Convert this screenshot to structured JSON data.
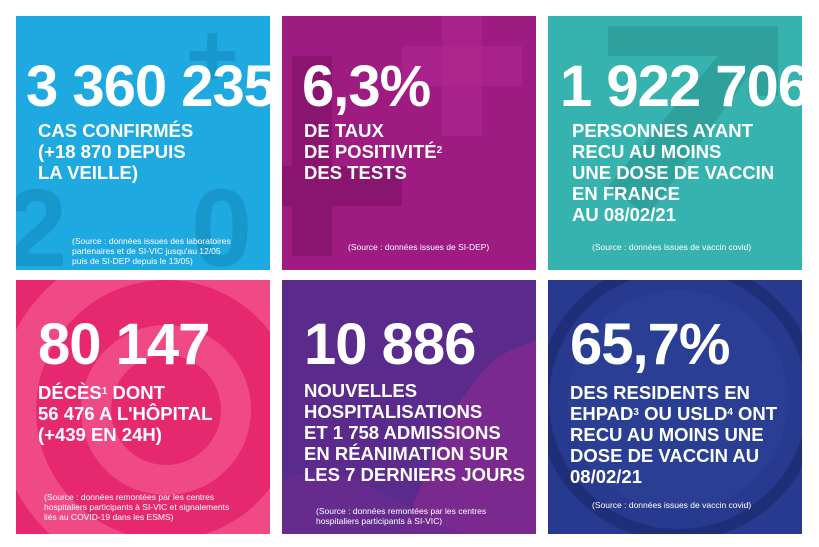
{
  "colors": {
    "tile_cases": "#1fa9e1",
    "tile_positivity": "#9e1b82",
    "tile_vaccine": "#36b3ae",
    "tile_deaths": "#e6296f",
    "tile_hospital": "#5a2a8c",
    "tile_ehpad": "#273a8f"
  },
  "tiles": {
    "cases": {
      "value": "3 360 235",
      "lines": [
        "CAS CONFIRMÉS",
        "(+18 870 DEPUIS",
        "LA VEILLE)"
      ],
      "source": [
        "(Source : données issues des laboratoires",
        "partenaires et de SI-VIC jusqu'au 12/05",
        "puis de SI-DEP depuis le 13/05)"
      ]
    },
    "positivity": {
      "value": "6,3%",
      "line1": "DE TAUX",
      "line2": "DE POSITIVITÉ",
      "line2_sup": "2",
      "line3": "DES TESTS",
      "source": [
        "(Source : données issues de SI-DEP)"
      ]
    },
    "vaccine": {
      "value": "1 922 706",
      "lines": [
        "PERSONNES AYANT",
        "RECU AU MOINS",
        "UNE DOSE DE VACCIN",
        "EN FRANCE",
        "AU 08/02/21"
      ],
      "source": [
        "(Source : données issues de vaccin covid)"
      ]
    },
    "deaths": {
      "value": "80 147",
      "line1": "DÉCÈS",
      "line1_sup": "1",
      "line1_rest": " DONT",
      "line2": "56 476 A L'HÔPITAL",
      "line3": "(+439 EN 24H)",
      "source": [
        "(Source : données remontées par les centres",
        "hospitaliers participants à SI-VIC et signalements",
        "liés au COVID-19 dans les ESMS)"
      ]
    },
    "hospital": {
      "value": "10 886",
      "lines": [
        "NOUVELLES",
        "HOSPITALISATIONS",
        "ET 1 758 ADMISSIONS",
        "EN RÉANIMATION SUR",
        "LES 7 DERNIERS JOURS"
      ],
      "source": [
        "(Source : données remontées par les centres",
        "hospitaliers participants à SI-VIC)"
      ]
    },
    "ehpad": {
      "value": "65,7%",
      "line1a": "DES RESIDENTS EN",
      "line2a": "EHPAD",
      "line2a_sup": "3",
      "line2b": " OU USLD",
      "line2b_sup": "4",
      "line2c": " ONT",
      "line3": "RECU AU MOINS UNE",
      "line4": "DOSE DE VACCIN AU",
      "line5": "08/02/21",
      "source": [
        "(Source : données issues de vaccin covid)"
      ]
    }
  }
}
